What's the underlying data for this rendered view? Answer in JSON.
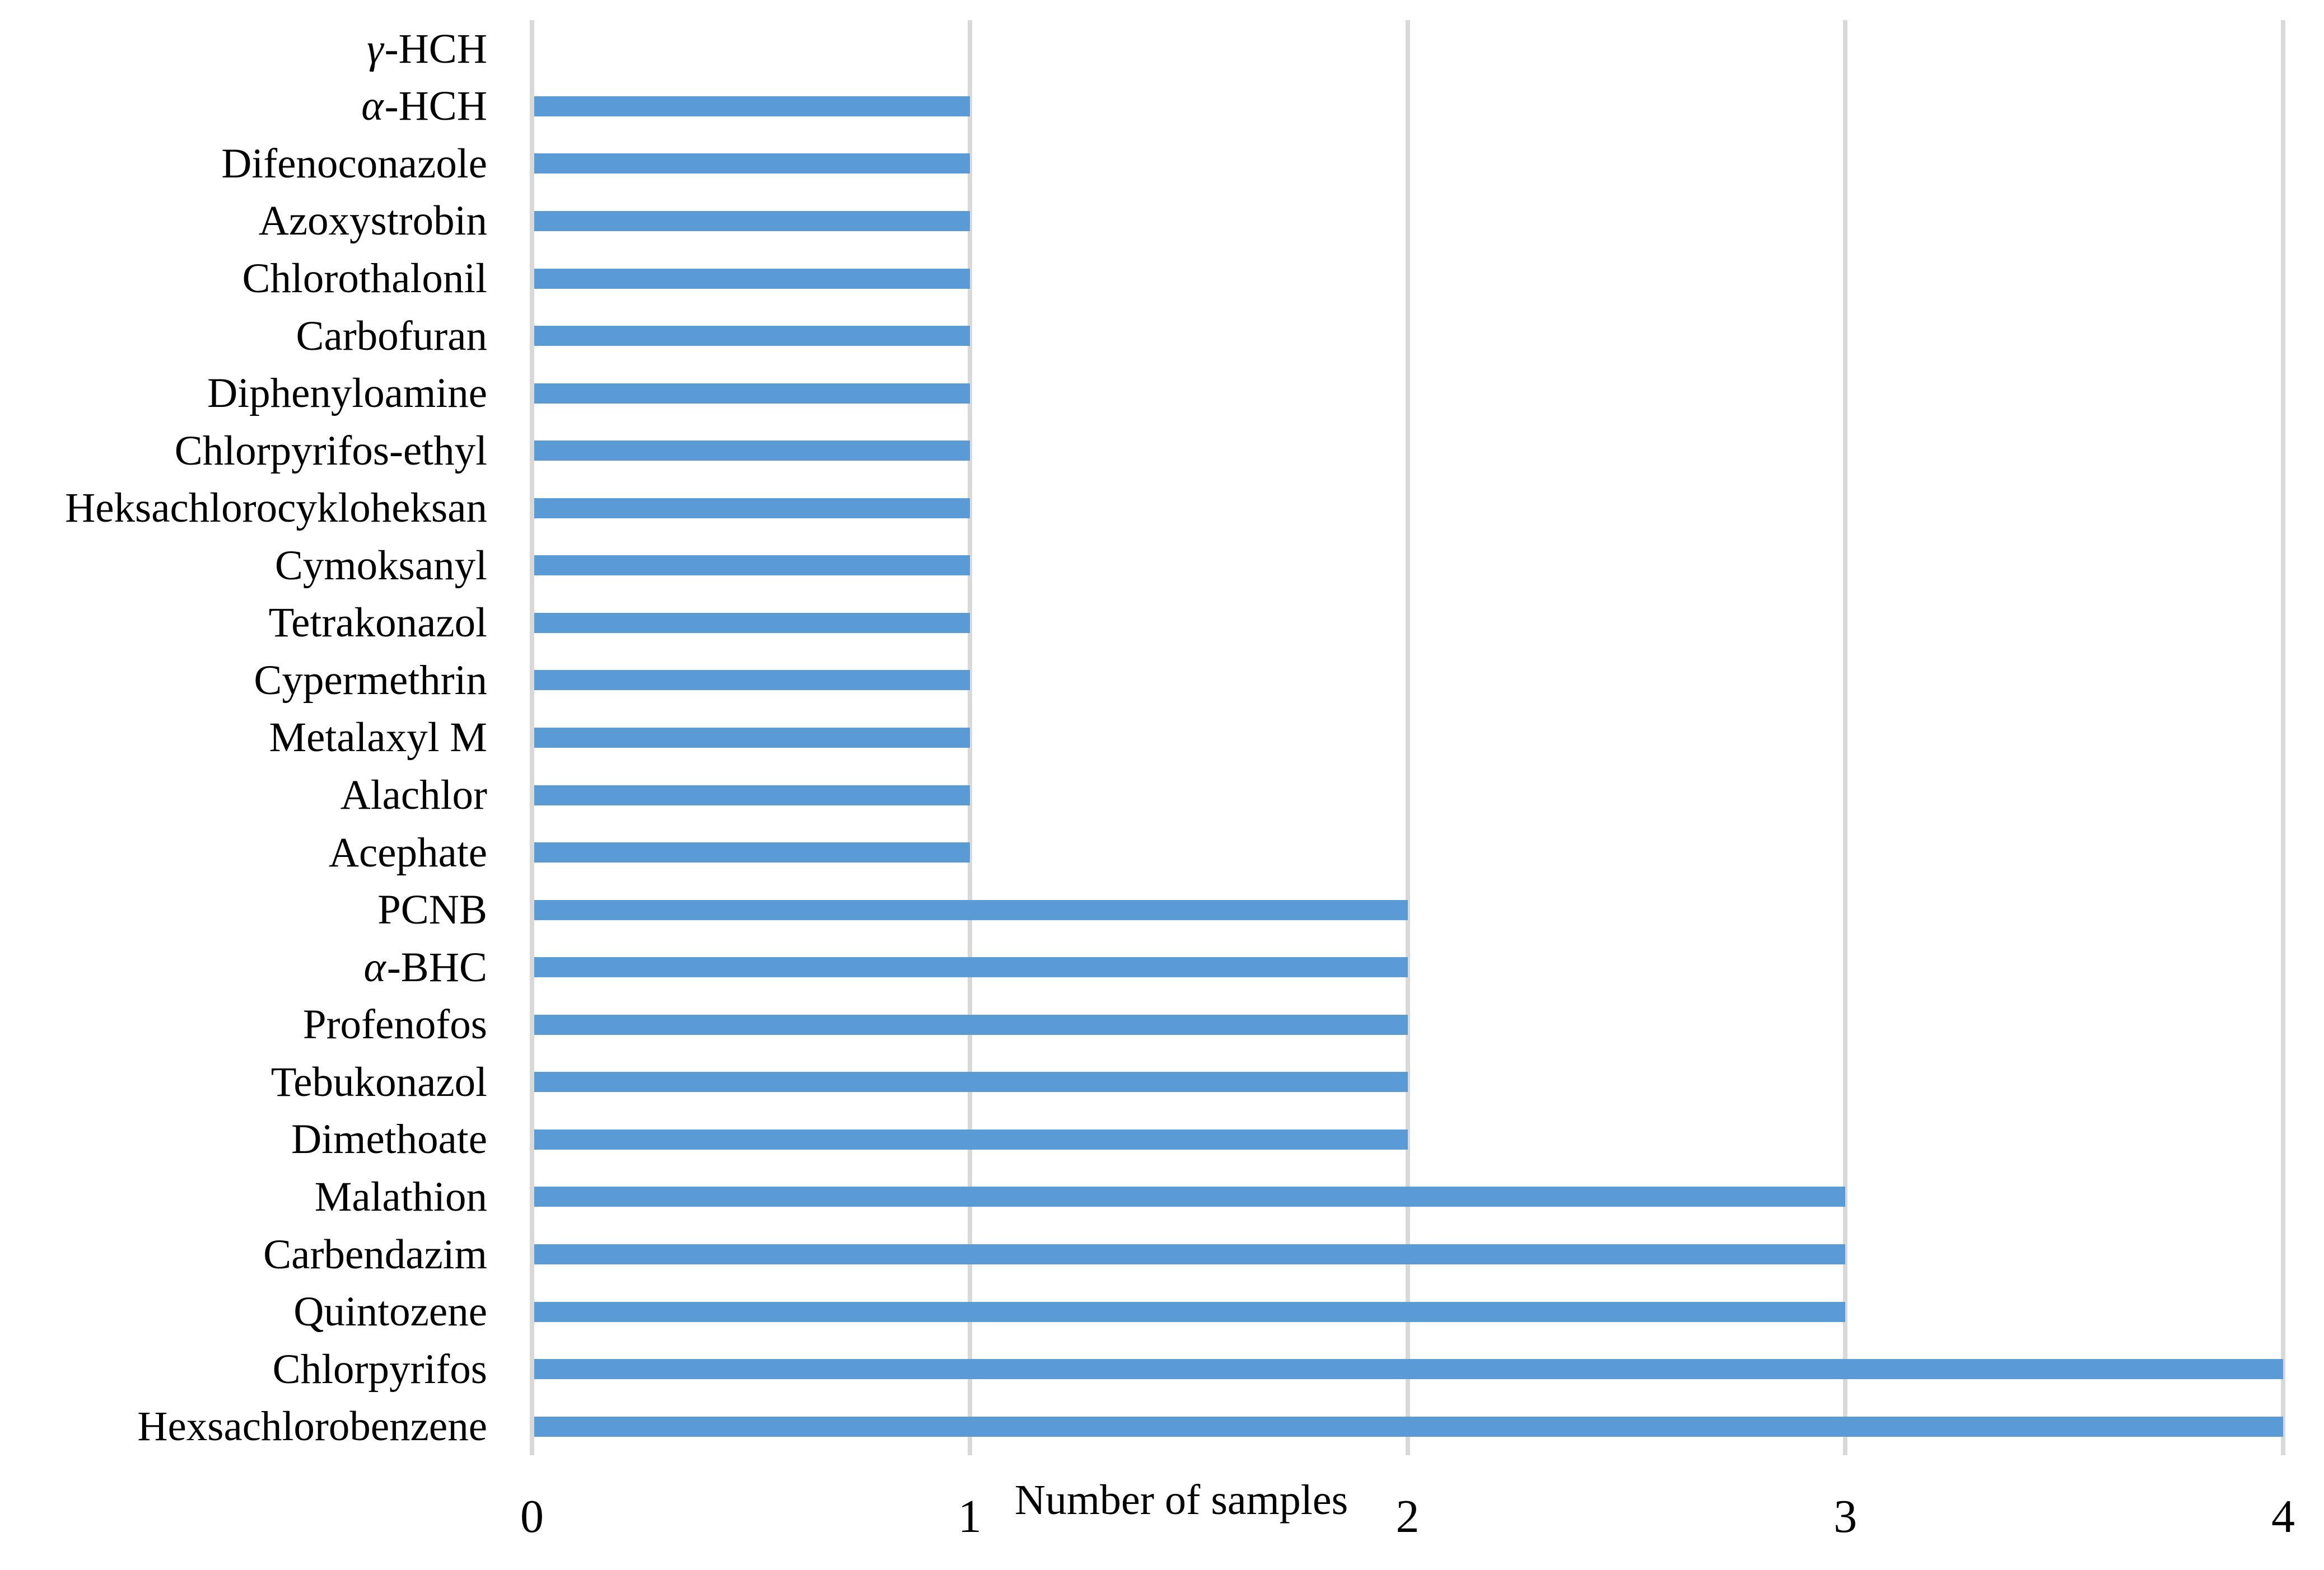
{
  "chart_data": {
    "type": "bar",
    "orientation": "horizontal",
    "title": "",
    "xlabel": "Number of samples",
    "ylabel": "",
    "categories": [
      "γ-HCH",
      "α-HCH",
      "Difenoconazole",
      "Azoxystrobin",
      "Chlorothalonil",
      "Carbofuran",
      "Diphenyloamine",
      "Chlorpyrifos-ethyl",
      "Heksachlorocykloheksan",
      "Cymoksanyl",
      "Tetrakonazol",
      "Cypermethrin",
      "Metalaxyl M",
      "Alachlor",
      "Acephate",
      "PCNB",
      "α-BHC",
      "Profenofos",
      "Tebukonazol",
      "Dimethoate",
      "Malathion",
      "Carbendazim",
      "Quintozene",
      "Chlorpyrifos",
      "Hexsachlorobenzene"
    ],
    "values": [
      0,
      1,
      1,
      1,
      1,
      1,
      1,
      1,
      1,
      1,
      1,
      1,
      1,
      1,
      1,
      2,
      2,
      2,
      2,
      2,
      3,
      3,
      3,
      4,
      4
    ],
    "xlim": [
      0,
      4
    ],
    "xticks": [
      0,
      1,
      2,
      3,
      4
    ],
    "grid": true,
    "legend": false,
    "bar_color": "#5B9BD5",
    "gridline_color": "#D9D9D9",
    "background_color": "#FFFFFF"
  }
}
